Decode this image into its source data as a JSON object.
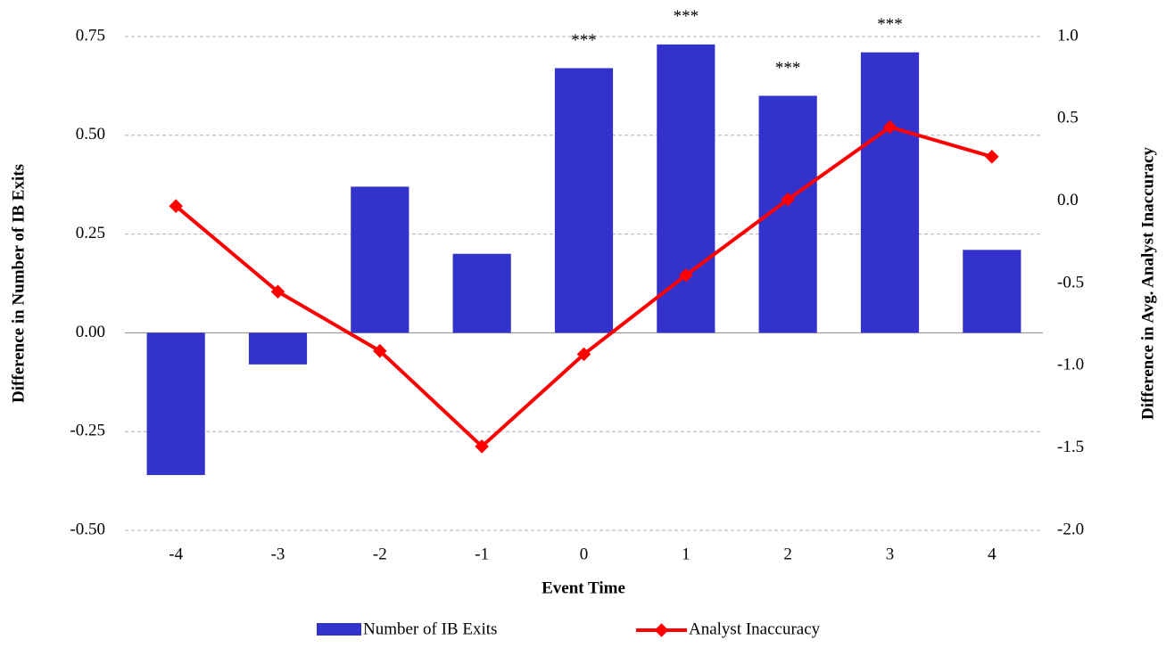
{
  "chart_data": {
    "type": "bar",
    "xlabel": "Event Time",
    "ylabel": "Difference in Number of IB Exits",
    "y2label": "Difference in Avg. Analyst Inaccuracy",
    "categories": [
      "-4",
      "-3",
      "-2",
      "-1",
      "0",
      "1",
      "2",
      "3",
      "4"
    ],
    "series": [
      {
        "name": "Number of IB Exits",
        "type": "bar",
        "axis": "y",
        "color": "#3333cc",
        "values": [
          -0.36,
          -0.08,
          0.37,
          0.2,
          0.67,
          0.73,
          0.6,
          0.71,
          0.21
        ]
      },
      {
        "name": "Analyst Inaccuracy",
        "type": "line",
        "axis": "y2",
        "color": "#ff0000",
        "values": [
          -0.03,
          -0.55,
          -0.91,
          -1.49,
          -0.93,
          -0.45,
          0.01,
          0.45,
          0.27
        ]
      }
    ],
    "annotations": [
      {
        "category": 4,
        "text": "***"
      },
      {
        "category": 5,
        "text": "***"
      },
      {
        "category": 6,
        "text": "***"
      },
      {
        "category": 7,
        "text": "***"
      }
    ],
    "ylim": [
      -0.5,
      0.75
    ],
    "yticks": [
      {
        "value": -0.5,
        "label": "-0.50"
      },
      -0.25,
      {
        "value": 0,
        "label": "0.00"
      },
      0.25,
      {
        "value": 0.5,
        "label": "0.50"
      },
      0.75
    ],
    "y2lim": [
      -2.0,
      1.0
    ],
    "y2ticks": [
      {
        "value": -2,
        "label": "-2.0"
      },
      -1.5,
      {
        "value": -1,
        "label": "-1.0"
      },
      -0.5,
      {
        "value": 0,
        "label": "0.0"
      },
      0.5,
      {
        "value": 1,
        "label": "1.0"
      }
    ],
    "grid": true,
    "legend": "bottom"
  }
}
